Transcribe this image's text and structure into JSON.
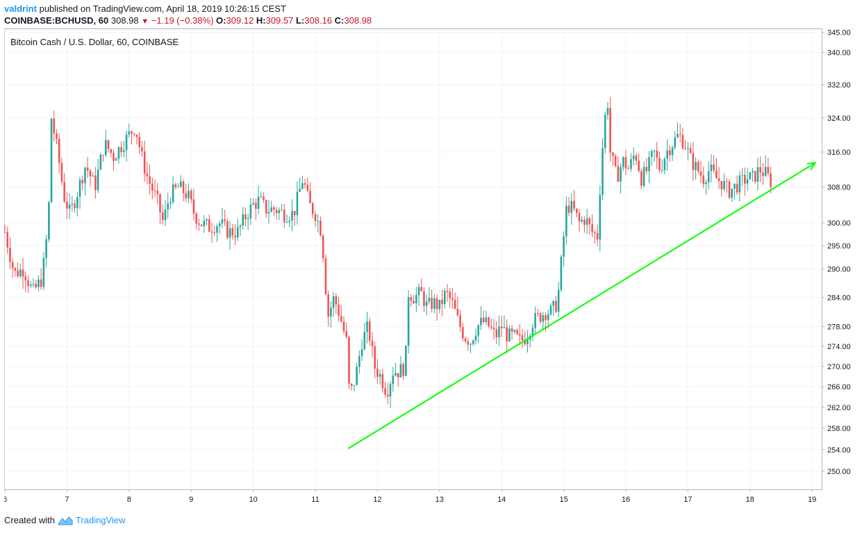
{
  "header": {
    "author": "valdrint",
    "published": "published on TradingView.com, April 18, 2019 10:26:15 CEST",
    "symbol": "COINBASE:BCHUSD, 60",
    "last": "308.98",
    "change_arrow": "▼",
    "change": "−1.19 (−0.38%)",
    "o_label": "O:",
    "o_value": "309.12",
    "h_label": "H:",
    "h_value": "309.57",
    "l_label": "L:",
    "l_value": "308.16",
    "c_label": "C:",
    "c_value": "308.98"
  },
  "footer": {
    "created_with": "Created with",
    "brand": "TradingView",
    "logo_icon": "tradingview-logo-icon"
  },
  "colors": {
    "up": "#26a69a",
    "down": "#ef5350",
    "trendline": "#00ff00",
    "grid": "#f0f3fa",
    "axis_text": "#131722"
  },
  "chart_data": {
    "type": "candlestick",
    "title": "Bitcoin Cash / U.S. Dollar, 60, COINBASE",
    "x_tick_labels": [
      "6",
      "7",
      "8",
      "9",
      "10",
      "11",
      "12",
      "13",
      "14",
      "15",
      "16",
      "17",
      "18",
      "19"
    ],
    "x_ticks_day": [
      6,
      7,
      8,
      9,
      10,
      11,
      12,
      13,
      14,
      15,
      16,
      17,
      18,
      19
    ],
    "x_range_day": [
      6,
      19.2
    ],
    "y_tick_labels": [
      "345.00",
      "340.00",
      "332.00",
      "324.00",
      "316.00",
      "308.00",
      "300.00",
      "295.00",
      "290.00",
      "284.00",
      "278.00",
      "274.00",
      "270.00",
      "266.00",
      "262.00",
      "258.00",
      "254.00",
      "250.00"
    ],
    "y_ticks": [
      345,
      340,
      332,
      324,
      316,
      308,
      300,
      295,
      290,
      284,
      278,
      274,
      270,
      266,
      262,
      258,
      254,
      250
    ],
    "y_scale": "log",
    "y_range": [
      246.7,
      346
    ],
    "grid": true,
    "candle_keypoints": [
      [
        6.0,
        298
      ],
      [
        6.15,
        289
      ],
      [
        6.3,
        290
      ],
      [
        6.45,
        285
      ],
      [
        6.6,
        288
      ],
      [
        6.7,
        300
      ],
      [
        6.75,
        324
      ],
      [
        6.85,
        316
      ],
      [
        6.95,
        306
      ],
      [
        7.05,
        302
      ],
      [
        7.15,
        306
      ],
      [
        7.3,
        313
      ],
      [
        7.45,
        308
      ],
      [
        7.6,
        318
      ],
      [
        7.75,
        315
      ],
      [
        7.9,
        318
      ],
      [
        8.0,
        320
      ],
      [
        8.1,
        322
      ],
      [
        8.2,
        315
      ],
      [
        8.3,
        310
      ],
      [
        8.45,
        305
      ],
      [
        8.55,
        300
      ],
      [
        8.65,
        306
      ],
      [
        8.8,
        308
      ],
      [
        8.95,
        306
      ],
      [
        9.05,
        302
      ],
      [
        9.15,
        300
      ],
      [
        9.3,
        299
      ],
      [
        9.45,
        300
      ],
      [
        9.6,
        298
      ],
      [
        9.75,
        298
      ],
      [
        9.9,
        302
      ],
      [
        10.0,
        304
      ],
      [
        10.1,
        305
      ],
      [
        10.2,
        303
      ],
      [
        10.35,
        303
      ],
      [
        10.5,
        302
      ],
      [
        10.65,
        302
      ],
      [
        10.8,
        310
      ],
      [
        10.9,
        304
      ],
      [
        11.0,
        302
      ],
      [
        11.1,
        298
      ],
      [
        11.2,
        280
      ],
      [
        11.3,
        284
      ],
      [
        11.4,
        280
      ],
      [
        11.5,
        275
      ],
      [
        11.55,
        264
      ],
      [
        11.65,
        268
      ],
      [
        11.75,
        275
      ],
      [
        11.85,
        278
      ],
      [
        11.95,
        270
      ],
      [
        12.05,
        268
      ],
      [
        12.15,
        265
      ],
      [
        12.25,
        269
      ],
      [
        12.35,
        269
      ],
      [
        12.45,
        270
      ],
      [
        12.5,
        285
      ],
      [
        12.6,
        284
      ],
      [
        12.7,
        285
      ],
      [
        12.8,
        282
      ],
      [
        12.9,
        283
      ],
      [
        13.0,
        282
      ],
      [
        13.1,
        285
      ],
      [
        13.2,
        283
      ],
      [
        13.3,
        279
      ],
      [
        13.4,
        276
      ],
      [
        13.5,
        275
      ],
      [
        13.6,
        278
      ],
      [
        13.7,
        279
      ],
      [
        13.8,
        278
      ],
      [
        13.9,
        276
      ],
      [
        14.0,
        278
      ],
      [
        14.1,
        276
      ],
      [
        14.2,
        276
      ],
      [
        14.3,
        275
      ],
      [
        14.4,
        276
      ],
      [
        14.5,
        279
      ],
      [
        14.6,
        280
      ],
      [
        14.7,
        281
      ],
      [
        14.8,
        281
      ],
      [
        14.9,
        283
      ],
      [
        14.95,
        290
      ],
      [
        15.05,
        304
      ],
      [
        15.15,
        303
      ],
      [
        15.25,
        300
      ],
      [
        15.35,
        301
      ],
      [
        15.45,
        298
      ],
      [
        15.55,
        297
      ],
      [
        15.6,
        313
      ],
      [
        15.7,
        330
      ],
      [
        15.75,
        316
      ],
      [
        15.85,
        310
      ],
      [
        15.95,
        314
      ],
      [
        16.05,
        312
      ],
      [
        16.15,
        316
      ],
      [
        16.25,
        310
      ],
      [
        16.35,
        312
      ],
      [
        16.45,
        316
      ],
      [
        16.55,
        312
      ],
      [
        16.65,
        316
      ],
      [
        16.75,
        318
      ],
      [
        16.85,
        320
      ],
      [
        16.95,
        318
      ],
      [
        17.05,
        314
      ],
      [
        17.15,
        312
      ],
      [
        17.25,
        310
      ],
      [
        17.35,
        312
      ],
      [
        17.45,
        310
      ],
      [
        17.55,
        309
      ],
      [
        17.65,
        307
      ],
      [
        17.75,
        308
      ],
      [
        17.85,
        309
      ],
      [
        17.95,
        310
      ],
      [
        18.05,
        310
      ],
      [
        18.15,
        312
      ],
      [
        18.25,
        311
      ],
      [
        18.35,
        309
      ]
    ],
    "trendline": {
      "from": [
        11.53,
        254.2
      ],
      "to": [
        19.05,
        313.5
      ]
    }
  }
}
